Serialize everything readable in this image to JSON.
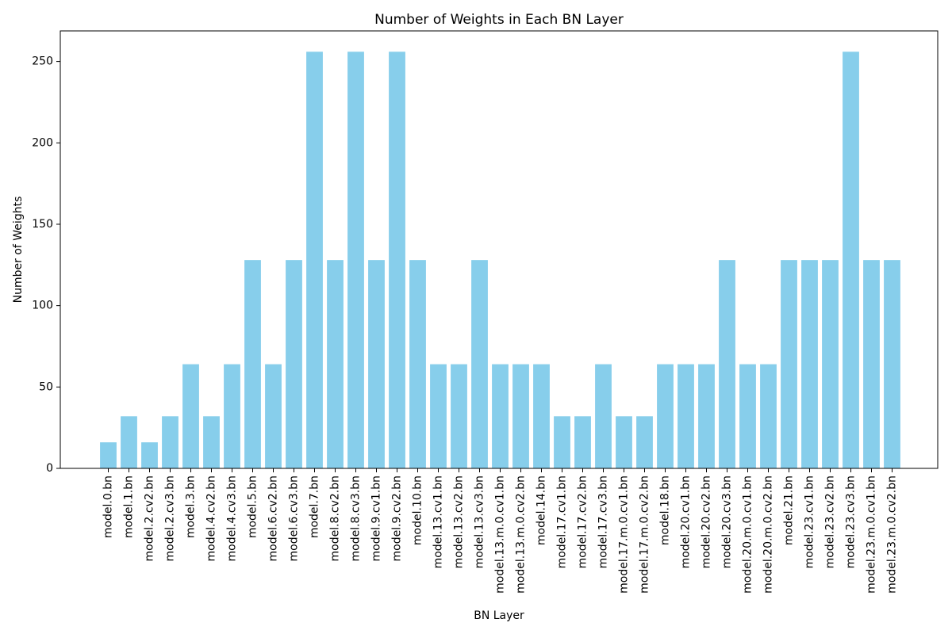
{
  "chart_data": {
    "type": "bar",
    "title": "Number of Weights in Each BN Layer",
    "xlabel": "BN Layer",
    "ylabel": "Number of Weights",
    "ylim": [
      0,
      268.8
    ],
    "yticks": [
      0,
      50,
      100,
      150,
      200,
      250
    ],
    "bar_color": "#87CEEB",
    "grid": false,
    "categories": [
      "model.0.bn",
      "model.1.bn",
      "model.2.cv2.bn",
      "model.2.cv3.bn",
      "model.3.bn",
      "model.4.cv2.bn",
      "model.4.cv3.bn",
      "model.5.bn",
      "model.6.cv2.bn",
      "model.6.cv3.bn",
      "model.7.bn",
      "model.8.cv2.bn",
      "model.8.cv3.bn",
      "model.9.cv1.bn",
      "model.9.cv2.bn",
      "model.10.bn",
      "model.13.cv1.bn",
      "model.13.cv2.bn",
      "model.13.cv3.bn",
      "model.13.m.0.cv1.bn",
      "model.13.m.0.cv2.bn",
      "model.14.bn",
      "model.17.cv1.bn",
      "model.17.cv2.bn",
      "model.17.cv3.bn",
      "model.17.m.0.cv1.bn",
      "model.17.m.0.cv2.bn",
      "model.18.bn",
      "model.20.cv1.bn",
      "model.20.cv2.bn",
      "model.20.cv3.bn",
      "model.20.m.0.cv1.bn",
      "model.20.m.0.cv2.bn",
      "model.21.bn",
      "model.23.cv1.bn",
      "model.23.cv2.bn",
      "model.23.cv3.bn",
      "model.23.m.0.cv1.bn",
      "model.23.m.0.cv2.bn"
    ],
    "values": [
      16,
      32,
      16,
      32,
      64,
      32,
      64,
      128,
      64,
      128,
      256,
      128,
      256,
      128,
      256,
      128,
      64,
      64,
      128,
      64,
      64,
      64,
      32,
      32,
      64,
      32,
      32,
      64,
      64,
      64,
      128,
      64,
      64,
      128,
      128,
      128,
      256,
      128,
      128
    ]
  }
}
